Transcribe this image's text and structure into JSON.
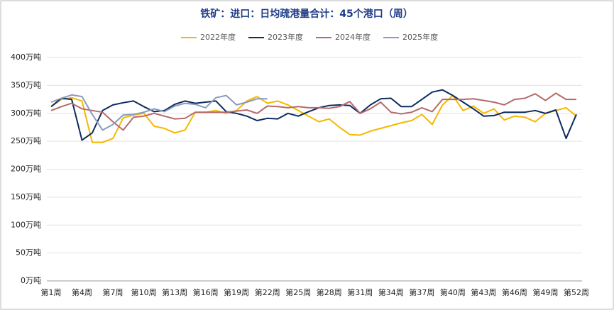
{
  "chart_data": {
    "type": "line",
    "title": "铁矿：进口：日均疏港量合计：45个港口（周）",
    "categories": [
      "第1周",
      null,
      null,
      "第4周",
      null,
      null,
      "第7周",
      null,
      null,
      "第10周",
      null,
      null,
      "第13周",
      null,
      null,
      "第16周",
      null,
      null,
      "第19周",
      null,
      null,
      "第22周",
      null,
      null,
      "第25周",
      null,
      null,
      "第28周",
      null,
      null,
      "第31周",
      null,
      null,
      "第34周",
      null,
      null,
      "第37周",
      null,
      null,
      "第40周",
      null,
      null,
      "第43周",
      null,
      null,
      "第46周",
      null,
      null,
      "第49周",
      null,
      null,
      "第52周"
    ],
    "series": [
      {
        "name": "2022年度",
        "color": "#f5b800",
        "values": [
          312,
          325,
          328,
          322,
          248,
          248,
          255,
          292,
          297,
          300,
          277,
          273,
          265,
          270,
          302,
          302,
          305,
          300,
          305,
          322,
          330,
          318,
          322,
          315,
          305,
          295,
          285,
          290,
          275,
          262,
          261,
          268,
          273,
          278,
          283,
          287,
          298,
          280,
          315,
          332,
          305,
          313,
          300,
          308,
          288,
          295,
          293,
          285,
          300,
          305,
          310,
          295
        ]
      },
      {
        "name": "2023年度",
        "color": "#0d2b5e",
        "values": [
          312,
          327,
          325,
          252,
          265,
          305,
          315,
          319,
          322,
          312,
          303,
          305,
          316,
          322,
          318,
          320,
          322,
          303,
          300,
          295,
          287,
          291,
          290,
          300,
          295,
          303,
          310,
          314,
          315,
          314,
          300,
          315,
          326,
          327,
          312,
          312,
          325,
          338,
          342,
          332,
          320,
          308,
          295,
          296,
          302,
          302,
          302,
          305,
          300,
          306,
          255,
          298
        ]
      },
      {
        "name": "2024年度",
        "color": "#b56a6a",
        "values": [
          305,
          312,
          318,
          308,
          305,
          302,
          285,
          270,
          293,
          295,
          300,
          295,
          290,
          291,
          302,
          302,
          302,
          302,
          304,
          306,
          300,
          313,
          312,
          310,
          312,
          310,
          310,
          309,
          312,
          321,
          300,
          308,
          320,
          302,
          299,
          302,
          310,
          303,
          325,
          325,
          325,
          326,
          323,
          320,
          315,
          325,
          327,
          335,
          323,
          336,
          325,
          325
        ]
      },
      {
        "name": "2025年度",
        "color": "#8a9bbd",
        "values": [
          320,
          327,
          333,
          330,
          298,
          270,
          280,
          297,
          298,
          302,
          308,
          303,
          313,
          318,
          316,
          310,
          328,
          332,
          315,
          320,
          326,
          326,
          null,
          null,
          null,
          null,
          null,
          null,
          null,
          null,
          null,
          null,
          null,
          null,
          null,
          null,
          null,
          null,
          null,
          null,
          null,
          null,
          null,
          null,
          null,
          null,
          null,
          null,
          null,
          null,
          null,
          null
        ]
      }
    ],
    "ylim": [
      0,
      400
    ],
    "yticks": [
      {
        "value": 0,
        "label": "0万吨"
      },
      {
        "value": 50,
        "label": "50万吨"
      },
      {
        "value": 100,
        "label": "100万吨"
      },
      {
        "value": 150,
        "label": "150万吨"
      },
      {
        "value": 200,
        "label": "200万吨"
      },
      {
        "value": 250,
        "label": "250万吨"
      },
      {
        "value": 300,
        "label": "300万吨"
      },
      {
        "value": 350,
        "label": "350万吨"
      },
      {
        "value": 400,
        "label": "400万吨"
      }
    ],
    "grid": true,
    "legend": "top"
  }
}
